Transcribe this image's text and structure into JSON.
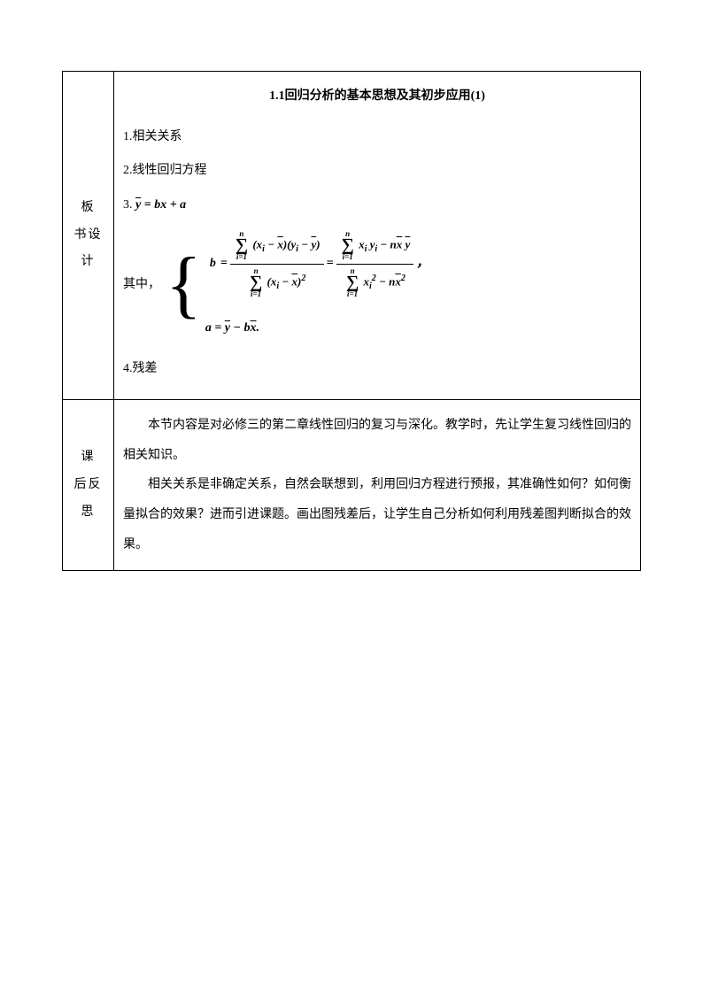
{
  "row1": {
    "label": "板 书设计",
    "title": "1.1回归分析的基本思想及其初步应用(1)",
    "item1": "1.相关关系",
    "item2": "2.线性回归方程",
    "item3_prefix": "3. ",
    "item3_formula": "ŷ = bx + a",
    "formula_prefix": "其中，",
    "item4": "4.残差",
    "sigma_top": "n",
    "sigma_bot": "i=1",
    "b_var": "b",
    "a_var": "a",
    "eq": "=",
    "comma": "，"
  },
  "row2": {
    "label": "课 后反思",
    "para1": "本节内容是对必修三的第二章线性回归的复习与深化。教学时，先让学生复习线性回归的相关知识。",
    "para2": "相关关系是非确定关系，自然会联想到，利用回归方程进行预报，其准确性如何？如何衡量拟合的效果？进而引进课题。画出图残差后，让学生自己分析如何利用残差图判断拟合的效果。"
  },
  "styles": {
    "border_color": "#000000",
    "background_color": "#ffffff",
    "text_color": "#000000",
    "font_size_body": 14,
    "font_size_formula": 14,
    "line_height": 2.3
  }
}
